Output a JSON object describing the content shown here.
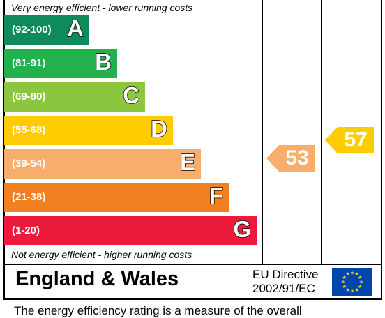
{
  "chart": {
    "top_caption": "Very energy efficient - lower running costs",
    "bottom_caption": "Not energy efficient - higher running costs",
    "bands": [
      {
        "range": "(92-100)",
        "letter": "A",
        "color": "#0f8a5b"
      },
      {
        "range": "(81-91)",
        "letter": "B",
        "color": "#22b14c"
      },
      {
        "range": "(69-80)",
        "letter": "C",
        "color": "#8cc63f"
      },
      {
        "range": "(55-68)",
        "letter": "D",
        "color": "#ffcc00"
      },
      {
        "range": "(39-54)",
        "letter": "E",
        "color": "#f7ae6d"
      },
      {
        "range": "(21-38)",
        "letter": "F",
        "color": "#f08020"
      },
      {
        "range": "(1-20)",
        "letter": "G",
        "color": "#ed1b3b"
      }
    ],
    "current": {
      "value": "53",
      "color": "#f7ae6d"
    },
    "potential": {
      "value": "57",
      "color": "#ffcc00"
    }
  },
  "footer": {
    "region": "England & Wales",
    "directive_line1": "EU Directive",
    "directive_line2": "2002/91/EC",
    "flag_icon": "eu-flag-icon",
    "flag_color": "#0046ad",
    "star_color": "#ffdd00"
  },
  "bottom_text": "The energy efficiency rating is a measure of the overall"
}
